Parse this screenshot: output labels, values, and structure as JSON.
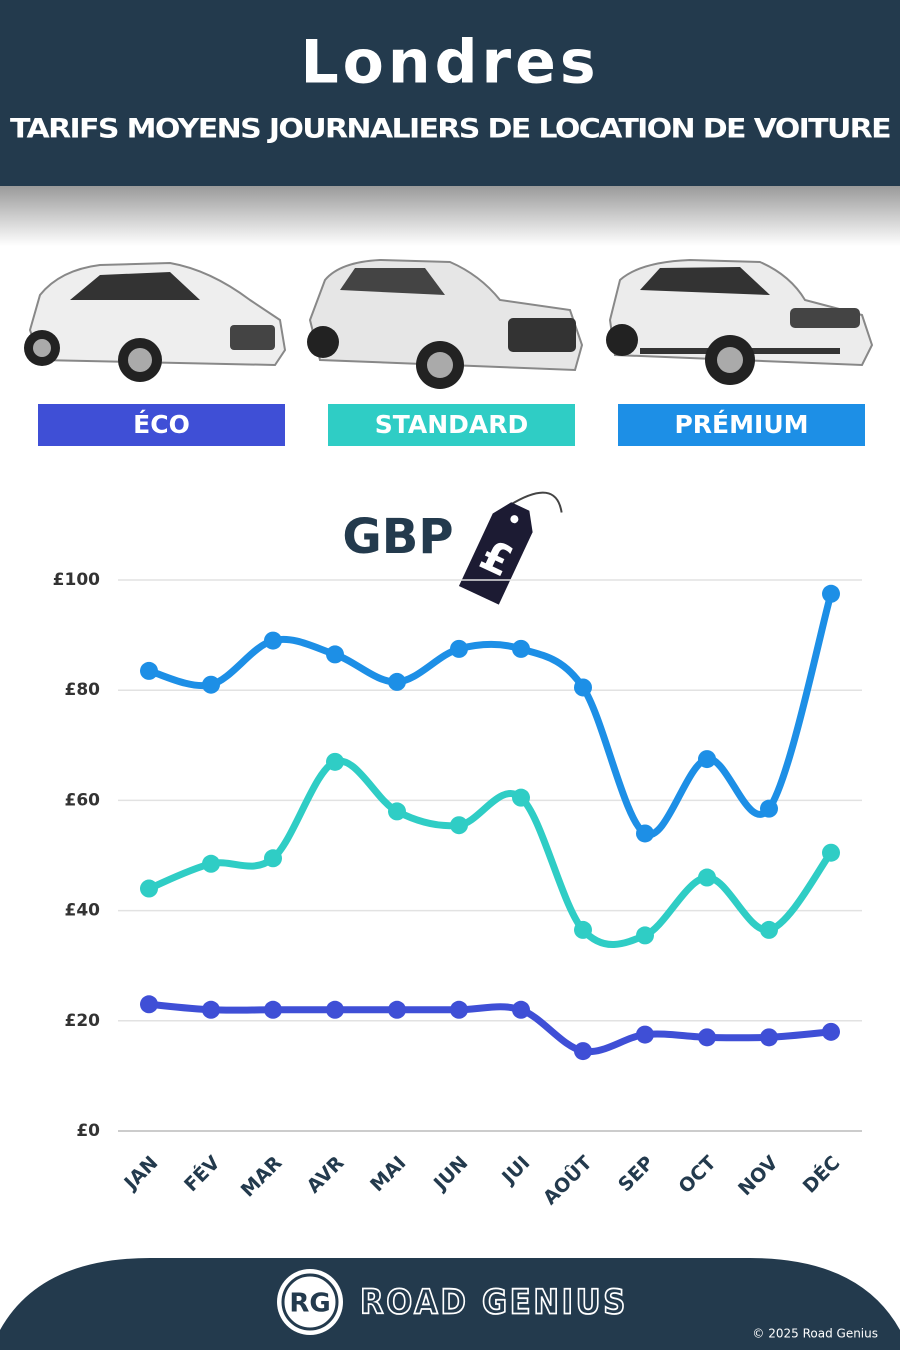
{
  "chart_data": {
    "type": "line",
    "title": "Londres",
    "subtitle": "TARIFS MOYENS JOURNALIERS DE LOCATION DE VOITURE",
    "currency_label": "GBP",
    "categories": [
      "JAN",
      "FÉV",
      "MAR",
      "AVR",
      "MAI",
      "JUN",
      "JUI",
      "AOÛT",
      "SEP",
      "OCT",
      "NOV",
      "DÉC"
    ],
    "series": [
      {
        "name": "ÉCO",
        "color": "#3f4fd6",
        "values": [
          23,
          22,
          22,
          22,
          22,
          22,
          22,
          14.5,
          17.5,
          17,
          17,
          18
        ]
      },
      {
        "name": "STANDARD",
        "color": "#2fcdc5",
        "values": [
          44,
          48.5,
          49.5,
          67,
          58,
          55.5,
          60.5,
          36.5,
          35.5,
          46,
          36.5,
          50.5
        ]
      },
      {
        "name": "PRÉMIUM",
        "color": "#1d8fe6",
        "values": [
          83.5,
          81,
          89,
          86.5,
          81.5,
          87.5,
          87.5,
          80.5,
          54,
          67.5,
          58.5,
          97.5
        ]
      }
    ],
    "ylim": [
      0,
      100
    ],
    "yticks": [
      {
        "value": 0,
        "label": "£0"
      },
      {
        "value": 20,
        "label": "£20"
      },
      {
        "value": 40,
        "label": "£40"
      },
      {
        "value": 60,
        "label": "£60"
      },
      {
        "value": 80,
        "label": "£80"
      },
      {
        "value": 100,
        "label": "£100"
      }
    ],
    "grid": true,
    "brand_initials": "RG",
    "brand": "ROAD GENIUS",
    "copyright": "© 2025 Road Genius"
  }
}
